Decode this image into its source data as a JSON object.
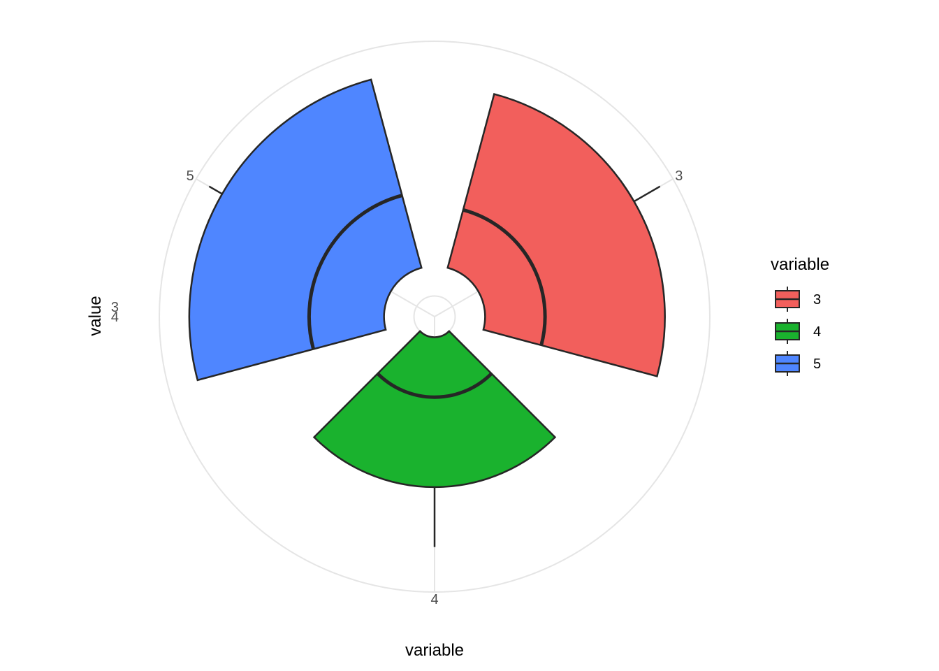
{
  "chart_data": {
    "type": "boxplot-polar",
    "xlabel": "variable",
    "ylabel": "value",
    "categories": [
      "3",
      "4",
      "5"
    ],
    "y_tick_labels": [
      "3",
      "4"
    ],
    "r_range": [
      -0.5,
      8.5
    ],
    "series": [
      {
        "category": "3",
        "color": "#F25F5C",
        "whisker_low": 1,
        "q1": 1,
        "median": 3,
        "q3": 7,
        "whisker_high": 8
      },
      {
        "category": "4",
        "color": "#1AB22E",
        "whisker_low": 0,
        "q1": 0,
        "median": 2,
        "q3": 5,
        "whisker_high": 7
      },
      {
        "category": "5",
        "color": "#4F86FF",
        "whisker_low": 1,
        "q1": 1,
        "median": 3.5,
        "q3": 7.5,
        "whisker_high": 8
      }
    ],
    "grid": true,
    "legend_position": "right",
    "legend_title": "variable",
    "colors": {
      "grid": "#E5E5E5",
      "outline": "#262626",
      "text": "#4D4D4D"
    }
  }
}
